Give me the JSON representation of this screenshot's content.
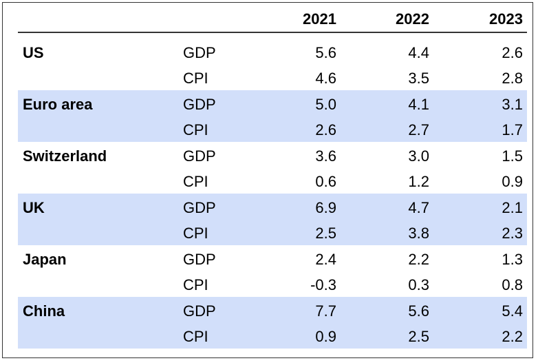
{
  "table": {
    "years": [
      "2021",
      "2022",
      "2023"
    ],
    "groups": [
      {
        "region": "US",
        "shaded": false,
        "rows": [
          {
            "indicator": "GDP",
            "values": [
              "5.6",
              "4.4",
              "2.6"
            ]
          },
          {
            "indicator": "CPI",
            "values": [
              "4.6",
              "3.5",
              "2.8"
            ]
          }
        ]
      },
      {
        "region": "Euro area",
        "shaded": true,
        "rows": [
          {
            "indicator": "GDP",
            "values": [
              "5.0",
              "4.1",
              "3.1"
            ]
          },
          {
            "indicator": "CPI",
            "values": [
              "2.6",
              "2.7",
              "1.7"
            ]
          }
        ]
      },
      {
        "region": "Switzerland",
        "shaded": false,
        "rows": [
          {
            "indicator": "GDP",
            "values": [
              "3.6",
              "3.0",
              "1.5"
            ]
          },
          {
            "indicator": "CPI",
            "values": [
              "0.6",
              "1.2",
              "0.9"
            ]
          }
        ]
      },
      {
        "region": "UK",
        "shaded": true,
        "rows": [
          {
            "indicator": "GDP",
            "values": [
              "6.9",
              "4.7",
              "2.1"
            ]
          },
          {
            "indicator": "CPI",
            "values": [
              "2.5",
              "3.8",
              "2.3"
            ]
          }
        ]
      },
      {
        "region": "Japan",
        "shaded": false,
        "rows": [
          {
            "indicator": "GDP",
            "values": [
              "2.4",
              "2.2",
              "1.3"
            ]
          },
          {
            "indicator": "CPI",
            "values": [
              "-0.3",
              "0.3",
              "0.8"
            ]
          }
        ]
      },
      {
        "region": "China",
        "shaded": true,
        "rows": [
          {
            "indicator": "GDP",
            "values": [
              "7.7",
              "5.6",
              "5.4"
            ]
          },
          {
            "indicator": "CPI",
            "values": [
              "0.9",
              "2.5",
              "2.2"
            ]
          }
        ]
      }
    ]
  },
  "colors": {
    "shade": "#d2dffa",
    "rule": "#333333",
    "text": "#000000"
  }
}
